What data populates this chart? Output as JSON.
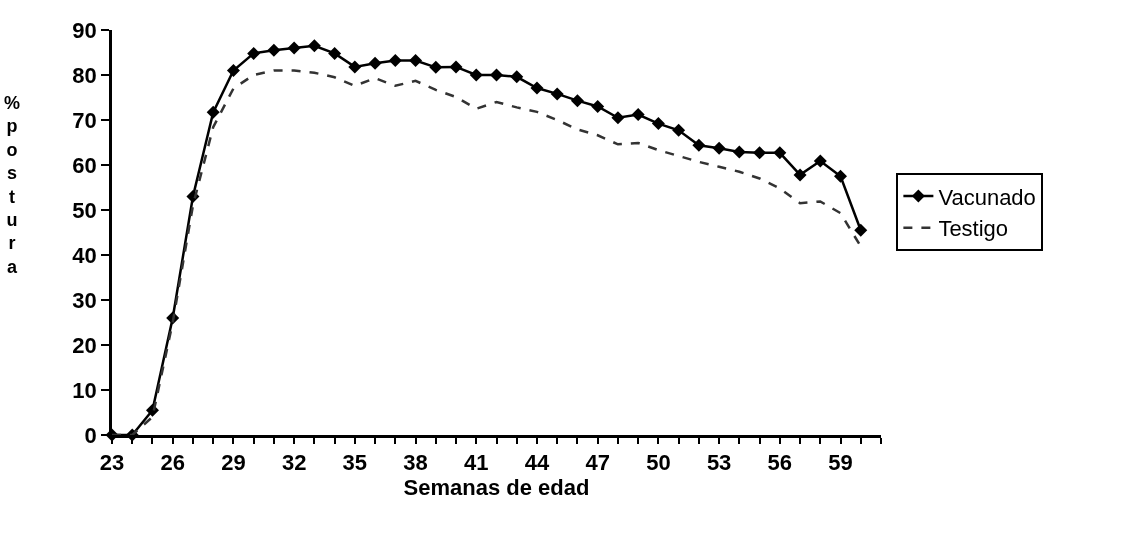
{
  "chart_data": {
    "type": "line",
    "xlabel": "Semanas de edad",
    "ylabel": "%\npostura",
    "x": [
      23,
      24,
      25,
      26,
      27,
      28,
      29,
      30,
      31,
      32,
      33,
      34,
      35,
      36,
      37,
      38,
      39,
      40,
      41,
      42,
      43,
      44,
      45,
      46,
      47,
      48,
      49,
      50,
      51,
      52,
      53,
      54,
      55,
      56,
      57,
      58,
      59,
      60
    ],
    "series": [
      {
        "name": "Vacunado",
        "color": "#000000",
        "marker": "diamond",
        "line_style": "solid",
        "values": [
          0,
          0,
          5.5,
          26,
          53,
          71.7,
          81,
          84.8,
          85.5,
          86,
          86.5,
          84.8,
          81.8,
          82.6,
          83.2,
          83.2,
          81.7,
          81.8,
          80,
          80,
          79.6,
          77.1,
          75.8,
          74.3,
          73,
          70.5,
          71.2,
          69.2,
          67.7,
          64.4,
          63.7,
          62.9,
          62.7,
          62.7,
          57.8,
          60.9,
          57.5,
          45.5
        ]
      },
      {
        "name": "Testigo",
        "color": "#333333",
        "marker": "none",
        "line_style": "dashed",
        "values": [
          0,
          0,
          4,
          25,
          51,
          68.4,
          77,
          80,
          81,
          81,
          80.5,
          79.5,
          77.6,
          79.3,
          77.6,
          78.7,
          76.7,
          75.1,
          72.5,
          74,
          72.8,
          71.8,
          70,
          67.9,
          66.6,
          64.6,
          64.9,
          63.3,
          62,
          60.7,
          59.6,
          58.5,
          57,
          54.8,
          51.5,
          51.9,
          49.3,
          41.9
        ]
      }
    ],
    "xlim": [
      23,
      61
    ],
    "xticks": [
      23,
      {
        "value": 24,
        "label": null
      },
      {
        "value": 25,
        "label": null
      },
      26,
      {
        "value": 27,
        "label": null
      },
      {
        "value": 28,
        "label": null
      },
      29,
      {
        "value": 30,
        "label": null
      },
      {
        "value": 31,
        "label": null
      },
      32,
      {
        "value": 33,
        "label": null
      },
      {
        "value": 34,
        "label": null
      },
      35,
      {
        "value": 36,
        "label": null
      },
      {
        "value": 37,
        "label": null
      },
      38,
      {
        "value": 39,
        "label": null
      },
      {
        "value": 40,
        "label": null
      },
      41,
      {
        "value": 42,
        "label": null
      },
      {
        "value": 43,
        "label": null
      },
      44,
      {
        "value": 45,
        "label": null
      },
      {
        "value": 46,
        "label": null
      },
      47,
      {
        "value": 48,
        "label": null
      },
      {
        "value": 49,
        "label": null
      },
      50,
      {
        "value": 51,
        "label": null
      },
      {
        "value": 52,
        "label": null
      },
      53,
      {
        "value": 54,
        "label": null
      },
      {
        "value": 55,
        "label": null
      },
      56,
      {
        "value": 57,
        "label": null
      },
      {
        "value": 58,
        "label": null
      },
      59,
      {
        "value": 60,
        "label": null
      },
      {
        "value": 61,
        "label": null
      }
    ],
    "ylim": [
      0,
      90
    ],
    "yticks": [
      0,
      10,
      20,
      30,
      40,
      50,
      60,
      70,
      80,
      90
    ],
    "grid": false,
    "legend": "right"
  }
}
